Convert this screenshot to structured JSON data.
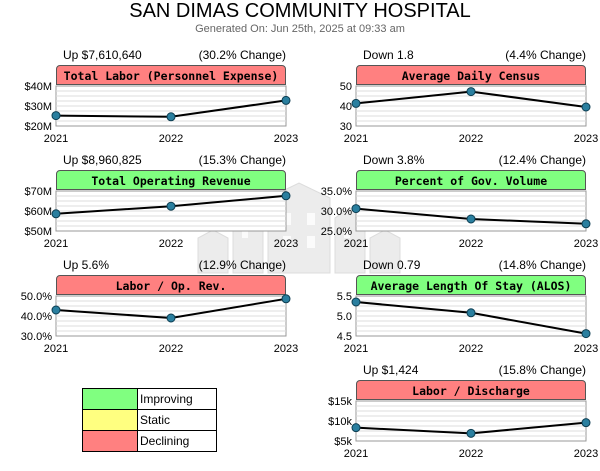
{
  "header": {
    "title": "SAN DIMAS COMMUNITY HOSPITAL",
    "generated": "Generated On: Jun 25th, 2025 at 09:33 am"
  },
  "colors": {
    "improving": "#80ff80",
    "static": "#ffff80",
    "declining": "#ff8080"
  },
  "legend": [
    {
      "label": "Improving",
      "color": "#80ff80"
    },
    {
      "label": "Static",
      "color": "#ffff80"
    },
    {
      "label": "Declining",
      "color": "#ff8080"
    }
  ],
  "chart_data": [
    {
      "type": "line",
      "title": "Total Labor (Personnel Expense)",
      "status": "declining",
      "change_left": "Up $7,610,640",
      "change_right": "(30.2% Change)",
      "x": [
        "2021",
        "2022",
        "2023"
      ],
      "values": [
        25.2,
        24.6,
        32.8
      ],
      "yticks": [
        "$40M",
        "$30M",
        "$20M"
      ],
      "ylim": [
        20,
        40
      ]
    },
    {
      "type": "line",
      "title": "Average Daily Census",
      "status": "declining",
      "change_left": "Down 1.8",
      "change_right": "(4.4% Change)",
      "x": [
        "2021",
        "2022",
        "2023"
      ],
      "values": [
        41.3,
        47.2,
        39.5
      ],
      "yticks": [
        "50",
        "40",
        "30"
      ],
      "ylim": [
        30,
        50
      ]
    },
    {
      "type": "line",
      "title": "Total Operating Revenue",
      "status": "improving",
      "change_left": "Up $8,960,825",
      "change_right": "(15.3% Change)",
      "x": [
        "2021",
        "2022",
        "2023"
      ],
      "values": [
        58.6,
        62.4,
        67.6
      ],
      "yticks": [
        "$70M",
        "$60M",
        "$50M"
      ],
      "ylim": [
        50,
        70
      ]
    },
    {
      "type": "line",
      "title": "Percent of Gov. Volume",
      "status": "improving",
      "change_left": "Down 3.8%",
      "change_right": "(12.4% Change)",
      "x": [
        "2021",
        "2022",
        "2023"
      ],
      "values": [
        30.6,
        28.0,
        26.8
      ],
      "yticks": [
        "35.0%",
        "30.0%",
        "25.0%"
      ],
      "ylim": [
        25,
        35
      ]
    },
    {
      "type": "line",
      "title": "Labor / Op. Rev.",
      "status": "declining",
      "change_left": "Up 5.6%",
      "change_right": "(12.9% Change)",
      "x": [
        "2021",
        "2022",
        "2023"
      ],
      "values": [
        43.0,
        39.0,
        48.6
      ],
      "yticks": [
        "50.0%",
        "40.0%",
        "30.0%"
      ],
      "ylim": [
        30,
        50
      ]
    },
    {
      "type": "line",
      "title": "Average Length Of Stay (ALOS)",
      "status": "improving",
      "change_left": "Down 0.79",
      "change_right": "(14.8% Change)",
      "x": [
        "2021",
        "2022",
        "2023"
      ],
      "values": [
        5.35,
        5.08,
        4.56
      ],
      "yticks": [
        "5.5",
        "5.0",
        "4.5"
      ],
      "ylim": [
        4.5,
        5.5
      ]
    },
    {
      "type": "line",
      "title": "Labor / Discharge",
      "status": "declining",
      "change_left": "Up $1,424",
      "change_right": "(15.8% Change)",
      "x": [
        "2021",
        "2022",
        "2023"
      ],
      "values": [
        9.0,
        7.3,
        10.5
      ],
      "yticks": [
        "$15k",
        "$10k",
        "$5k"
      ],
      "ylim": [
        5,
        17
      ]
    }
  ]
}
